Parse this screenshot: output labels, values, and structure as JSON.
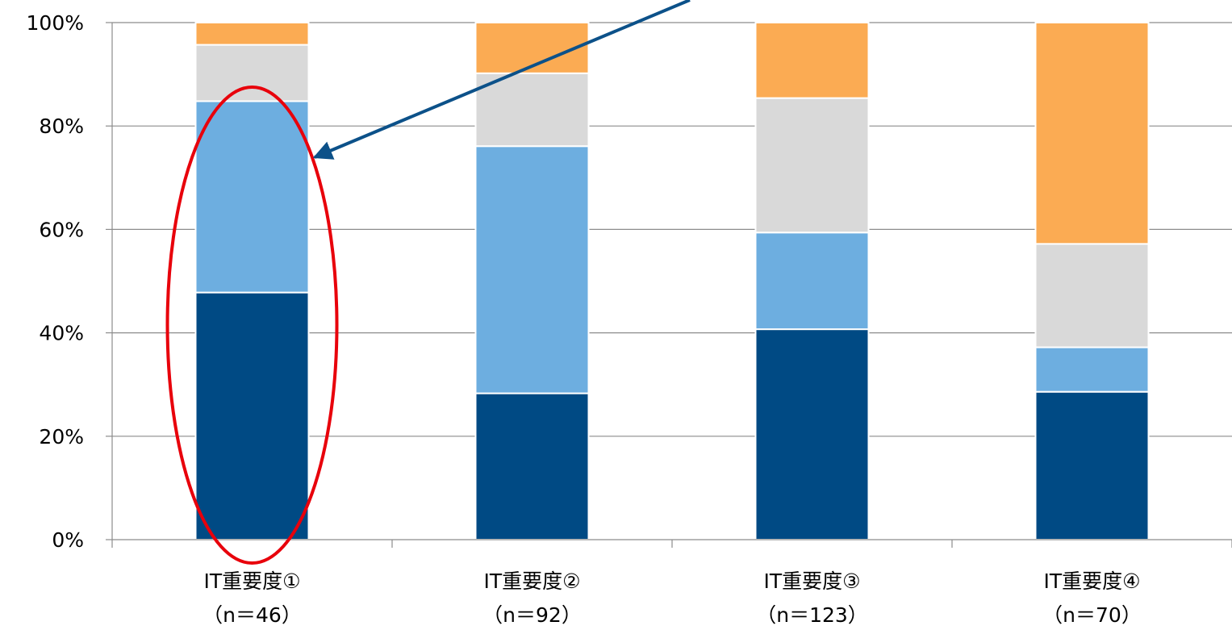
{
  "chart_data": {
    "type": "bar",
    "stacked": true,
    "orientation": "vertical",
    "categories": [
      {
        "line1": "IT重要度①",
        "line2": "（n＝46）"
      },
      {
        "line1": "IT重要度②",
        "line2": "（n＝92）"
      },
      {
        "line1": "IT重要度③",
        "line2": "（n＝123）"
      },
      {
        "line1": "IT重要度④",
        "line2": "（n＝70）"
      }
    ],
    "series": [
      {
        "color": "#004a84",
        "values": [
          47.8,
          28.3,
          40.7,
          28.6
        ]
      },
      {
        "color": "#6daee0",
        "values": [
          37.0,
          47.8,
          18.7,
          8.6
        ]
      },
      {
        "color": "#d9d9d9",
        "values": [
          10.9,
          14.1,
          26.0,
          20.0
        ]
      },
      {
        "color": "#fbab53",
        "values": [
          4.3,
          9.8,
          14.6,
          42.8
        ]
      }
    ],
    "ylim": [
      0,
      100
    ],
    "yticks": [
      "0%",
      "20%",
      "40%",
      "60%",
      "80%",
      "100%"
    ],
    "grid": true,
    "title": "",
    "xlabel": "",
    "ylabel": ""
  },
  "annotations": {
    "highlight_ellipse_color": "#e8000b",
    "arrow_color": "#0c5189"
  }
}
